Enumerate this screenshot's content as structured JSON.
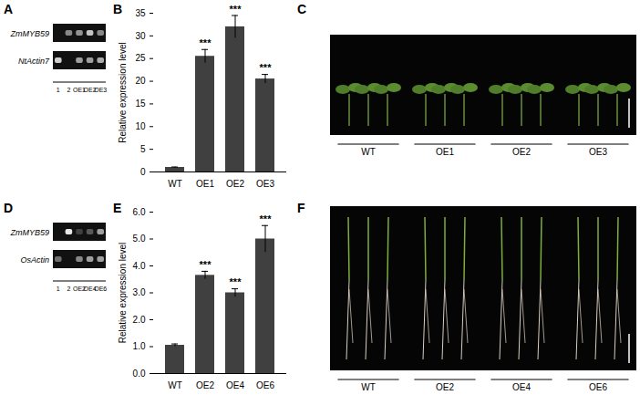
{
  "panels": {
    "A": {
      "title": "A",
      "type": "gel",
      "lanes": [
        "1",
        "2",
        "OE1",
        "OE2",
        "OE3"
      ],
      "genes": [
        {
          "name": "ZmMYB59",
          "bands": [
            0,
            0.5,
            0.55,
            0.75,
            0.5
          ]
        },
        {
          "name": "NtActin7",
          "bands": [
            0.8,
            0,
            0.6,
            0.6,
            0.65
          ]
        }
      ]
    },
    "C": {
      "title": "C",
      "type": "photo",
      "groups": [
        "WT",
        "OE1",
        "OE2",
        "OE3"
      ]
    },
    "D": {
      "title": "D",
      "type": "gel",
      "lanes": [
        "1",
        "2",
        "OE2",
        "OE4",
        "OE6"
      ],
      "genes": [
        {
          "name": "ZmMYB59",
          "bands": [
            0,
            0.9,
            0.2,
            0.3,
            0.6
          ]
        },
        {
          "name": "OsActin",
          "bands": [
            0.4,
            0,
            0.5,
            0.6,
            0.6
          ]
        }
      ]
    },
    "F": {
      "title": "F",
      "type": "photo",
      "groups": [
        "WT",
        "OE2",
        "OE4",
        "OE6"
      ]
    }
  },
  "chart_data": [
    {
      "type": "bar",
      "title": "B",
      "y_label": "Relative expression level",
      "categories": [
        "WT",
        "OE1",
        "OE2",
        "OE3"
      ],
      "values": [
        1,
        25.5,
        32,
        20.5
      ],
      "errors": [
        0.1,
        1.5,
        2.5,
        1
      ],
      "color": "#404040",
      "annotations": [
        {
          "category": "OE1",
          "text": "***"
        },
        {
          "category": "OE2",
          "text": "***"
        },
        {
          "category": "OE3",
          "text": "***"
        }
      ],
      "ylim": [
        0,
        35
      ],
      "yticks": [
        0,
        5,
        10,
        15,
        20,
        25,
        30,
        35
      ],
      "grid": false
    },
    {
      "type": "bar",
      "title": "E",
      "y_label": "Relative expression level",
      "categories": [
        "WT",
        "OE2",
        "OE4",
        "OE6"
      ],
      "values": [
        1.05,
        3.65,
        3,
        5
      ],
      "errors": [
        0.05,
        0.15,
        0.15,
        0.5
      ],
      "color": "#404040",
      "annotations": [
        {
          "category": "OE2",
          "text": "***"
        },
        {
          "category": "OE4",
          "text": "***"
        },
        {
          "category": "OE6",
          "text": "***"
        }
      ],
      "ylim": [
        0,
        6
      ],
      "yticks": [
        0,
        1,
        2,
        3,
        4,
        5,
        6
      ],
      "grid": false
    }
  ]
}
